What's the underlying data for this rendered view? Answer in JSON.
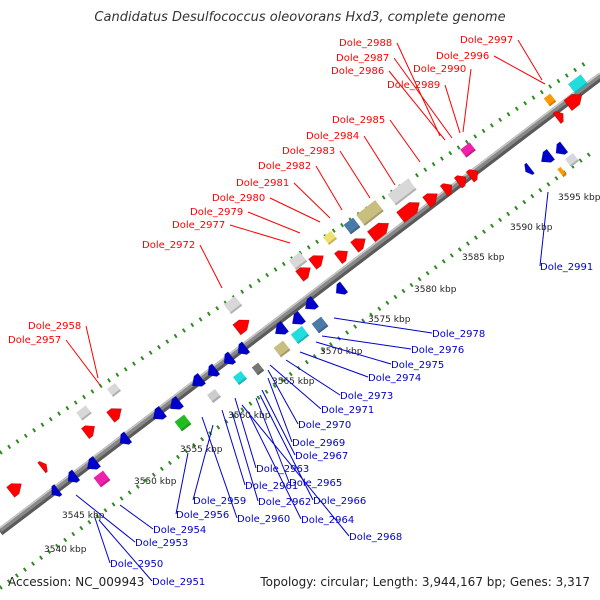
{
  "title": "Candidatus Desulfococcus oleovorans Hxd3, complete genome",
  "accession_text": "Accession: NC_009943",
  "summary_text": "Topology: circular; Length: 3,944,167 bp; Genes: 3,317",
  "colors": {
    "upper_strand": "#ff0000",
    "lower_strand": "#0000cc",
    "ticks": "#2e8b20",
    "backbone": "#888888"
  },
  "scale_labels": [
    "3540 kbp",
    "3545 kbp",
    "3550 kbp",
    "3555 kbp",
    "3560 kbp",
    "3565 kbp",
    "3570 kbp",
    "3575 kbp",
    "3580 kbp",
    "3585 kbp",
    "3590 kbp",
    "3595 kbp"
  ],
  "upper_labels": [
    "Dole_2957",
    "Dole_2958",
    "Dole_2972",
    "Dole_2977",
    "Dole_2979",
    "Dole_2980",
    "Dole_2981",
    "Dole_2982",
    "Dole_2983",
    "Dole_2984",
    "Dole_2985",
    "Dole_2986",
    "Dole_2987",
    "Dole_2988",
    "Dole_2989",
    "Dole_2990",
    "Dole_2996",
    "Dole_2997"
  ],
  "lower_labels": [
    "Dole_2950",
    "Dole_2951",
    "Dole_2953",
    "Dole_2954",
    "Dole_2956",
    "Dole_2959",
    "Dole_2960",
    "Dole_2961",
    "Dole_2962",
    "Dole_2963",
    "Dole_2964",
    "Dole_2965",
    "Dole_2966",
    "Dole_2967",
    "Dole_2968",
    "Dole_2969",
    "Dole_2970",
    "Dole_2971",
    "Dole_2973",
    "Dole_2974",
    "Dole_2975",
    "Dole_2976",
    "Dole_2978",
    "Dole_2991"
  ]
}
